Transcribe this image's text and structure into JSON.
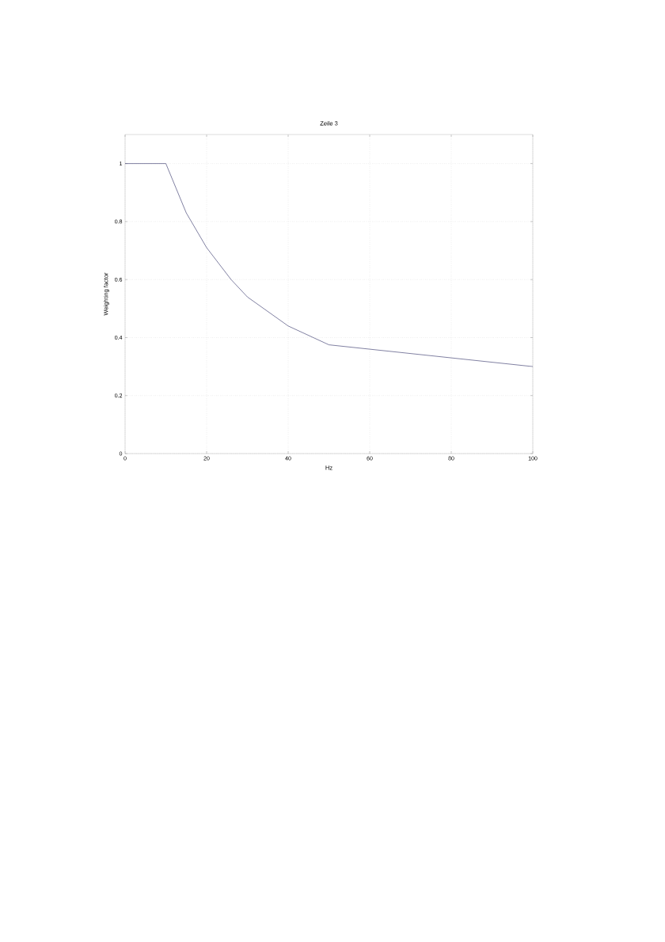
{
  "chart_data": {
    "type": "line",
    "title": "Zeile 3",
    "xlabel": "Hz",
    "ylabel": "Weighting factor",
    "x": [
      0,
      10,
      15,
      20,
      26,
      30,
      40,
      50,
      60,
      80,
      100
    ],
    "series": [
      {
        "color": "#4b4b7a",
        "values": [
          1,
          1,
          0.83,
          0.71,
          0.6,
          0.54,
          0.44,
          0.375,
          0.36,
          0.33,
          0.3
        ]
      }
    ],
    "xlim": [
      0,
      100
    ],
    "ylim": [
      0,
      1.1
    ],
    "xticks": [
      0,
      20,
      40,
      60,
      80,
      100
    ],
    "yticks": [
      0,
      0.2,
      0.4,
      0.6,
      0.8,
      1
    ],
    "grid": true,
    "marker": "none",
    "line_style": "solid"
  }
}
